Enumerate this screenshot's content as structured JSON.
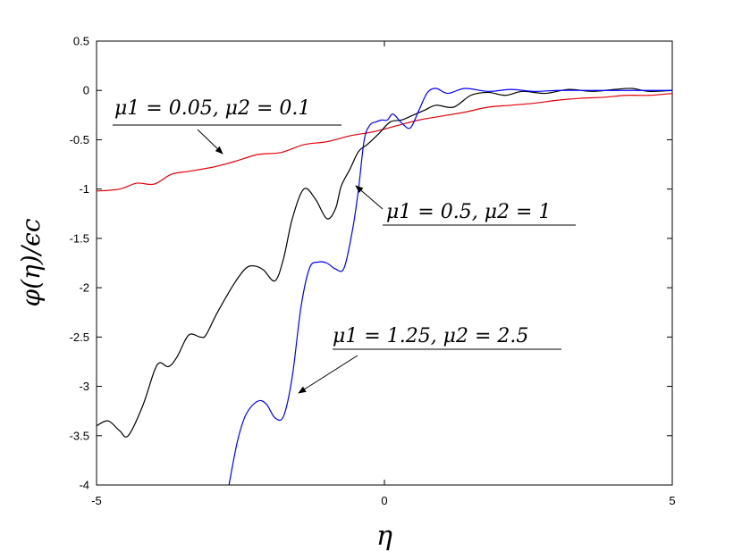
{
  "chart_data": {
    "type": "line",
    "xlabel": "η",
    "ylabel": "φ(η)/ϵc",
    "xlim": [
      -5,
      5
    ],
    "ylim": [
      -4,
      0.5
    ],
    "xticks": [
      -5,
      0,
      5
    ],
    "yticks": [
      0.5,
      0,
      -0.5,
      -1,
      -1.5,
      -2,
      -2.5,
      -3,
      -3.5,
      -4
    ],
    "xtick_labels": [
      "-5",
      "0",
      "5"
    ],
    "ytick_labels": [
      "0.5",
      "0",
      "-0.5",
      "-1",
      "-1.5",
      "-2",
      "-2.5",
      "-3",
      "-3.5",
      "-4"
    ],
    "grid": false,
    "series": [
      {
        "name": "μ1 = 0.05, μ2 = 0.1",
        "color": "#e8000b",
        "x": [
          -5,
          -4.6,
          -4.3,
          -4.0,
          -3.7,
          -3.4,
          -3.0,
          -2.6,
          -2.2,
          -1.8,
          -1.4,
          -1.0,
          -0.6,
          -0.2,
          0.2,
          0.6,
          1.0,
          1.4,
          1.8,
          2.2,
          2.6,
          3.0,
          3.4,
          3.8,
          4.2,
          4.6,
          5.0
        ],
        "y": [
          -1.02,
          -1.0,
          -0.94,
          -0.95,
          -0.85,
          -0.82,
          -0.78,
          -0.72,
          -0.65,
          -0.63,
          -0.55,
          -0.52,
          -0.46,
          -0.42,
          -0.36,
          -0.3,
          -0.26,
          -0.22,
          -0.17,
          -0.15,
          -0.13,
          -0.1,
          -0.08,
          -0.07,
          -0.05,
          -0.05,
          -0.03
        ]
      },
      {
        "name": "μ1 = 0.5, μ2 = 1",
        "color": "#000000",
        "x": [
          -5,
          -4.8,
          -4.6,
          -4.45,
          -4.2,
          -4.0,
          -3.9,
          -3.75,
          -3.6,
          -3.4,
          -3.2,
          -3.1,
          -2.9,
          -2.6,
          -2.4,
          -2.25,
          -2.1,
          -1.9,
          -1.75,
          -1.6,
          -1.4,
          -1.2,
          -1.0,
          -0.85,
          -0.75,
          -0.6,
          -0.45,
          -0.3,
          -0.1,
          0.1,
          0.3,
          0.5,
          0.7,
          0.9,
          1.2,
          1.5,
          1.8,
          2.1,
          2.4,
          2.8,
          3.2,
          3.6,
          4.0,
          4.3,
          4.6,
          5.0
        ],
        "y": [
          -3.4,
          -3.35,
          -3.45,
          -3.5,
          -3.2,
          -2.85,
          -2.76,
          -2.8,
          -2.7,
          -2.48,
          -2.5,
          -2.48,
          -2.25,
          -1.95,
          -1.8,
          -1.78,
          -1.82,
          -1.93,
          -1.7,
          -1.3,
          -1.0,
          -1.1,
          -1.3,
          -1.2,
          -0.97,
          -0.8,
          -0.62,
          -0.55,
          -0.44,
          -0.32,
          -0.3,
          -0.25,
          -0.2,
          -0.15,
          -0.17,
          -0.05,
          -0.02,
          -0.05,
          -0.01,
          -0.03,
          0.01,
          -0.01,
          0.01,
          0.02,
          -0.01,
          0.0
        ]
      },
      {
        "name": "μ1 = 1.25, μ2 = 2.5",
        "color": "#0000ff",
        "x": [
          -2.7,
          -2.55,
          -2.4,
          -2.2,
          -2.05,
          -1.9,
          -1.75,
          -1.6,
          -1.45,
          -1.3,
          -1.15,
          -1.0,
          -0.85,
          -0.7,
          -0.55,
          -0.45,
          -0.35,
          -0.25,
          -0.15,
          -0.05,
          0.05,
          0.15,
          0.3,
          0.45,
          0.6,
          0.75,
          0.9,
          1.1,
          1.4,
          1.8,
          2.2,
          2.6,
          3.0,
          3.5,
          4.0,
          4.5,
          5.0
        ],
        "y": [
          -4.0,
          -3.55,
          -3.28,
          -3.15,
          -3.18,
          -3.32,
          -3.3,
          -2.9,
          -2.2,
          -1.8,
          -1.74,
          -1.75,
          -1.81,
          -1.8,
          -1.4,
          -1.0,
          -0.5,
          -0.35,
          -0.32,
          -0.3,
          -0.3,
          -0.24,
          -0.33,
          -0.38,
          -0.2,
          -0.02,
          0.02,
          -0.03,
          0.02,
          -0.01,
          0.01,
          -0.01,
          0.0,
          0.0,
          0.0,
          0.0,
          0.0
        ]
      }
    ],
    "annotations": [
      {
        "text": "μ1 = 0.05, μ2 = 0.1",
        "target_series": 0
      },
      {
        "text": "μ1 = 0.5, μ2 = 1",
        "target_series": 1
      },
      {
        "text": "μ1 = 1.25, μ2 = 2.5",
        "target_series": 2
      }
    ]
  }
}
